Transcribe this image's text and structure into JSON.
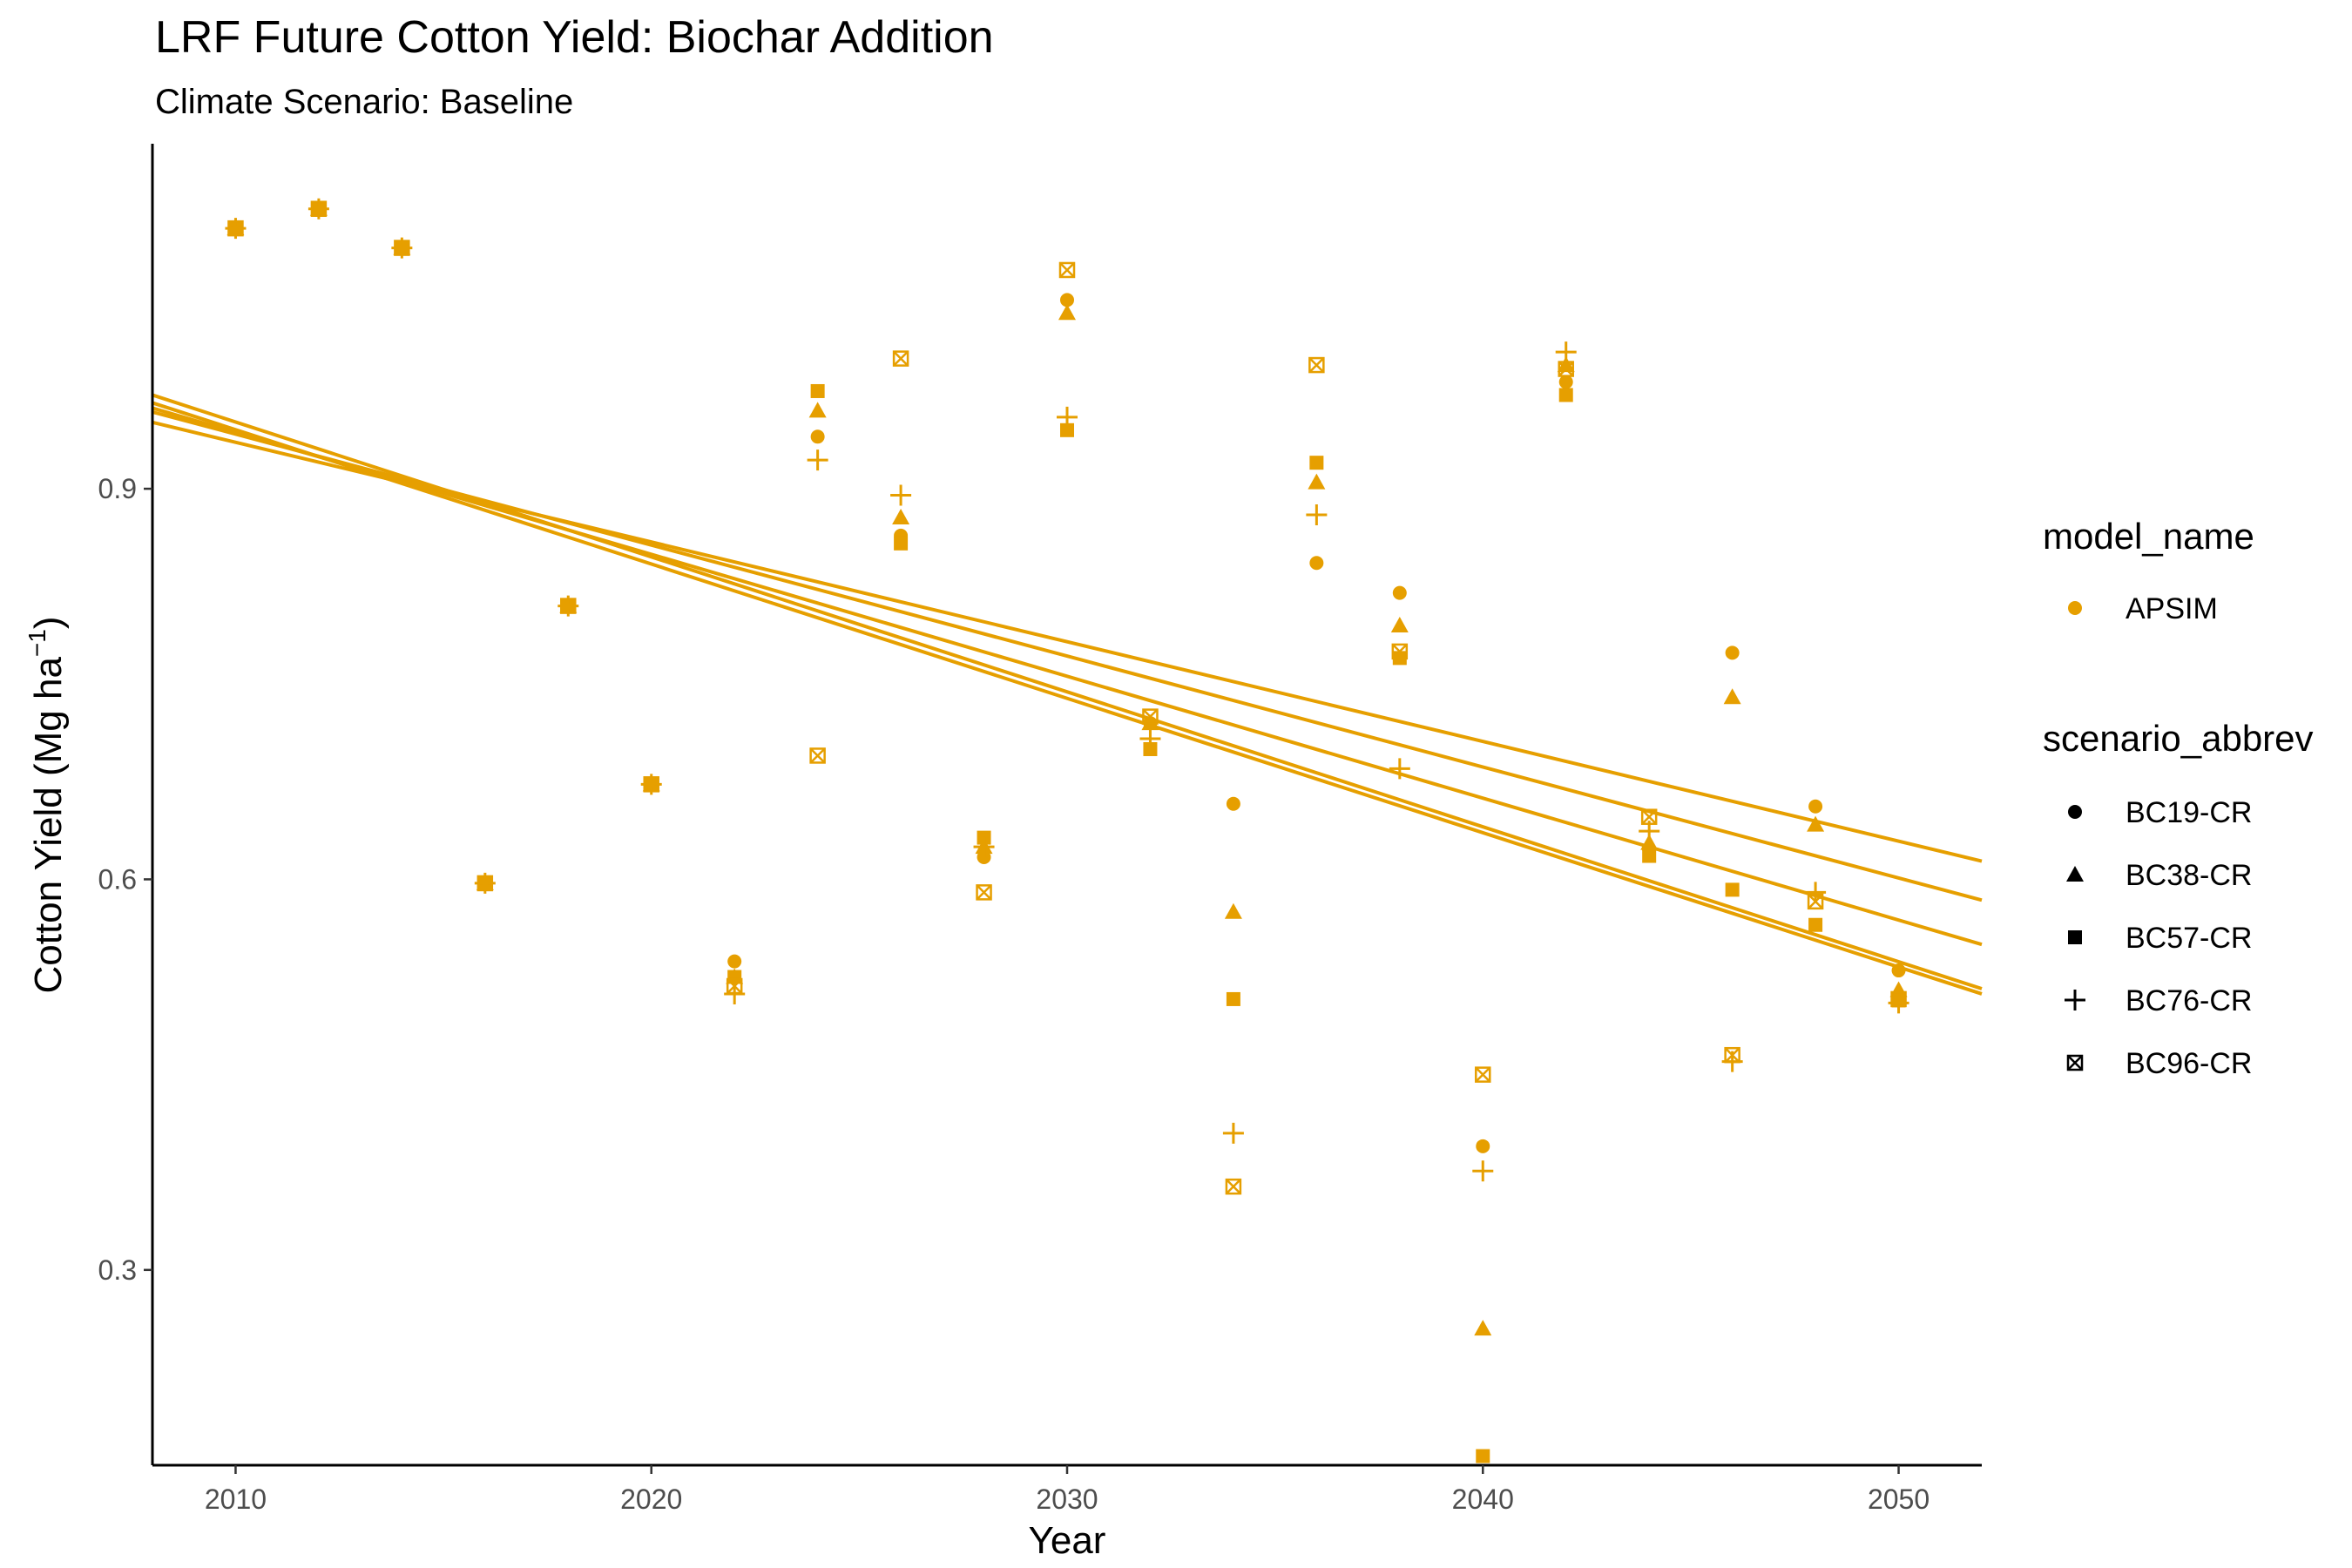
{
  "chart_data": {
    "type": "scatter",
    "title": "LRF Future Cotton Yield: Biochar Addition",
    "subtitle": "Climate Scenario: Baseline",
    "xlabel": "Year",
    "ylabel_main": "Cotton Yield (Mg ha",
    "ylabel_sup": "−1",
    "ylabel_close": ")",
    "xlim": [
      2008,
      2052
    ],
    "ylim": [
      0.15,
      1.165
    ],
    "x_ticks": [
      2010,
      2020,
      2030,
      2040,
      2050
    ],
    "x_tick_labels": [
      "2010",
      "2020",
      "2030",
      "2040",
      "2050"
    ],
    "y_ticks": [
      0.3,
      0.6,
      0.9
    ],
    "y_tick_labels": [
      "0.3",
      "0.6",
      "0.9"
    ],
    "grid": false,
    "color": "#E69F00",
    "legend_position": "right",
    "legend_model": {
      "title": "model_name",
      "entries": [
        {
          "label": "APSIM",
          "shape": "circle"
        }
      ]
    },
    "legend_scenario": {
      "title": "scenario_abbrev",
      "entries": [
        {
          "label": "BC19-CR",
          "shape": "circle"
        },
        {
          "label": "BC38-CR",
          "shape": "triangle"
        },
        {
          "label": "BC57-CR",
          "shape": "square"
        },
        {
          "label": "BC76-CR",
          "shape": "plus"
        },
        {
          "label": "BC96-CR",
          "shape": "boxx"
        }
      ]
    },
    "x": [
      2010,
      2012,
      2014,
      2016,
      2018,
      2020,
      2022,
      2024,
      2026,
      2028,
      2030,
      2032,
      2034,
      2036,
      2038,
      2040,
      2042,
      2044,
      2046,
      2048,
      2050
    ],
    "series": [
      {
        "name": "BC19-CR",
        "shape": "circle",
        "values": [
          1.1,
          1.115,
          1.085,
          0.597,
          0.81,
          0.673,
          0.537,
          0.94,
          0.864,
          0.617,
          1.045,
          0.72,
          0.658,
          0.843,
          0.82,
          0.395,
          0.982,
          0.623,
          0.774,
          0.656,
          0.53
        ],
        "trend": [
          0.959,
          0.584
        ]
      },
      {
        "name": "BC38-CR",
        "shape": "triangle",
        "values": [
          1.1,
          1.115,
          1.085,
          0.597,
          0.81,
          0.673,
          0.525,
          0.96,
          0.878,
          0.625,
          1.035,
          0.72,
          0.575,
          0.905,
          0.795,
          0.255,
          0.995,
          0.628,
          0.74,
          0.642,
          0.515
        ],
        "trend": [
          0.951,
          0.614
        ]
      },
      {
        "name": "BC57-CR",
        "shape": "square",
        "values": [
          1.1,
          1.115,
          1.085,
          0.597,
          0.81,
          0.673,
          0.525,
          0.975,
          0.858,
          0.632,
          0.945,
          0.7,
          0.508,
          0.92,
          0.77,
          0.157,
          0.972,
          0.618,
          0.592,
          0.565,
          0.507
        ],
        "trend": [
          0.966,
          0.512
        ]
      },
      {
        "name": "BC76-CR",
        "shape": "plus",
        "values": [
          1.1,
          1.115,
          1.085,
          0.597,
          0.81,
          0.673,
          0.512,
          0.922,
          0.895,
          0.625,
          0.955,
          0.708,
          0.405,
          0.88,
          0.685,
          0.376,
          1.005,
          0.637,
          0.46,
          0.59,
          0.505
        ],
        "trend": [
          0.972,
          0.516
        ]
      },
      {
        "name": "BC96-CR",
        "shape": "boxx",
        "values": [
          1.1,
          1.115,
          1.085,
          0.597,
          0.81,
          0.673,
          0.518,
          0.695,
          1.0,
          0.59,
          1.068,
          0.725,
          0.364,
          0.995,
          0.775,
          0.45,
          0.992,
          0.648,
          0.465,
          0.583,
          0.508
        ],
        "trend": [
          0.962,
          0.55
        ]
      }
    ]
  }
}
